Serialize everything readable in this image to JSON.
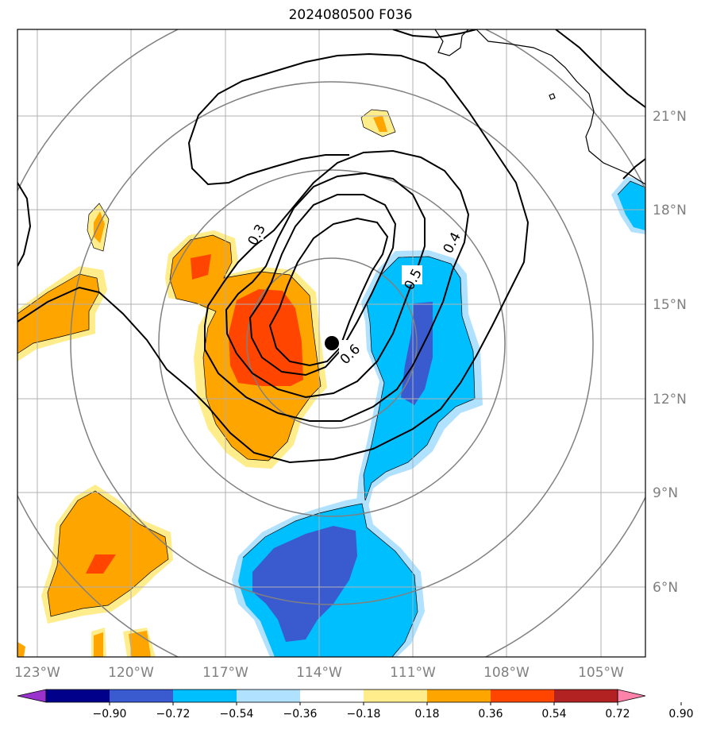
{
  "title": "2024080500 F036",
  "chart_data": {
    "type": "map",
    "title": "2024080500 F036",
    "lon_ticks": [
      "123°W",
      "120°W",
      "117°W",
      "114°W",
      "111°W",
      "108°W",
      "105°W"
    ],
    "lat_ticks": [
      "21°N",
      "18°N",
      "15°N",
      "12°N",
      "9°N",
      "6°N"
    ],
    "contour_labels": [
      "0.3",
      "0.4",
      "0.5",
      "0.6"
    ],
    "colorbar": {
      "ticks": [
        "−0.90",
        "−0.72",
        "−0.54",
        "−0.36",
        "−0.18",
        "0.18",
        "0.36",
        "0.54",
        "0.72",
        "0.90"
      ],
      "colors": [
        "#9a32cd",
        "#00008b",
        "#3a5bd0",
        "#00bfff",
        "#b0e2ff",
        "#ffffff",
        "#ffec8b",
        "#ffa500",
        "#ff4500",
        "#b22222",
        "#ff82ab"
      ],
      "extend": "both"
    },
    "center_marker": {
      "lon": -113.7,
      "lat": 13.8
    },
    "range_rings": 4
  }
}
